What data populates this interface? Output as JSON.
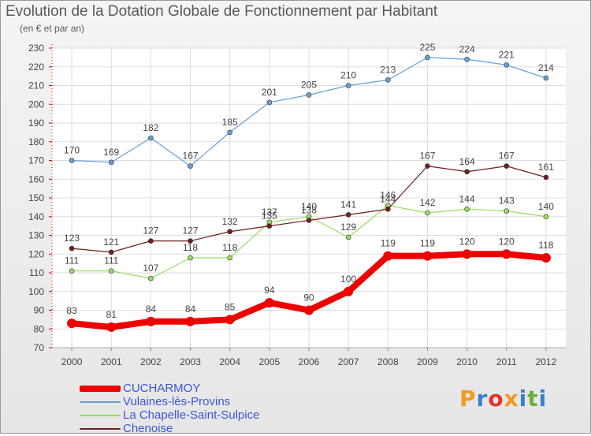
{
  "header": {
    "title": "Evolution de la Dotation Globale de Fonctionnement par Habitant",
    "subtitle": "(en € et par an)"
  },
  "logo": {
    "text": "Proxiti",
    "letters": [
      {
        "ch": "P",
        "color": "#f29a1e"
      },
      {
        "ch": "r",
        "color": "#3a7fcf"
      },
      {
        "ch": "o",
        "color": "#e6332a"
      },
      {
        "ch": "x",
        "color": "#f29a1e"
      },
      {
        "ch": "i",
        "color": "#3a7fcf"
      },
      {
        "ch": "t",
        "color": "#6cae3a"
      },
      {
        "ch": "i",
        "color": "#3a7fcf"
      }
    ]
  },
  "chart_data": {
    "type": "line",
    "title": "Evolution de la Dotation Globale de Fonctionnement par Habitant",
    "subtitle": "(en € et par an)",
    "xlabel": "",
    "ylabel": "",
    "x": [
      "2000",
      "2001",
      "2002",
      "2003",
      "2004",
      "2005",
      "2006",
      "2007",
      "2008",
      "2009",
      "2010",
      "2011",
      "2012"
    ],
    "ylim": [
      70,
      230
    ],
    "yticks": [
      70,
      80,
      90,
      100,
      110,
      120,
      130,
      140,
      150,
      160,
      170,
      180,
      190,
      200,
      210,
      220,
      230
    ],
    "grid": true,
    "legend_position": "bottom-left",
    "series": [
      {
        "name": "CUCHARMOY",
        "color": "#ee0000",
        "emphasis": "thick",
        "values": [
          83,
          81,
          84,
          84,
          85,
          94,
          90,
          100,
          119,
          119,
          120,
          120,
          118
        ]
      },
      {
        "name": "Vulaines-lès-Provins",
        "color": "#6a9fd4",
        "emphasis": "normal",
        "values": [
          170,
          169,
          182,
          167,
          185,
          201,
          205,
          210,
          213,
          225,
          224,
          221,
          214
        ]
      },
      {
        "name": "La Chapelle-Saint-Sulpice",
        "color": "#99dd66",
        "emphasis": "normal",
        "values": [
          111,
          111,
          107,
          118,
          118,
          137,
          140,
          129,
          146,
          142,
          144,
          143,
          140
        ]
      },
      {
        "name": "Chenoise",
        "color": "#6e1f1f",
        "emphasis": "normal",
        "values": [
          123,
          121,
          127,
          127,
          132,
          135,
          138,
          141,
          144,
          167,
          164,
          167,
          161
        ]
      }
    ]
  }
}
